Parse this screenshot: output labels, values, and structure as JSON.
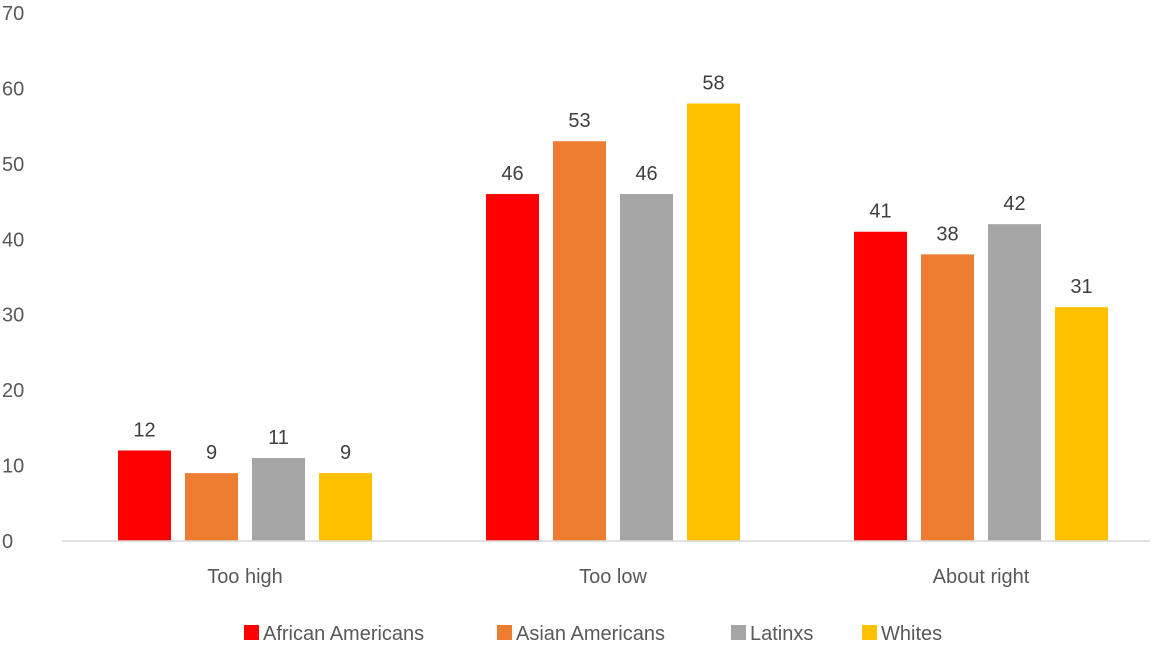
{
  "chart_data": {
    "type": "bar",
    "title": "",
    "xlabel": "",
    "ylabel": "",
    "categories": [
      "Too high",
      "Too low",
      "About right"
    ],
    "series": [
      {
        "name": "African Americans",
        "color": "#FF0000",
        "values": [
          12,
          46,
          41
        ]
      },
      {
        "name": "Asian Americans",
        "color": "#ED7D31",
        "values": [
          9,
          53,
          38
        ]
      },
      {
        "name": "Latinxs",
        "color": "#A5A5A5",
        "values": [
          11,
          46,
          42
        ]
      },
      {
        "name": "Whites",
        "color": "#FFC000",
        "values": [
          9,
          58,
          31
        ]
      }
    ],
    "ylim": [
      0,
      70
    ],
    "yticks": [
      0,
      10,
      20,
      30,
      40,
      50,
      60,
      70
    ],
    "grid": false,
    "data_labels": true,
    "legend_position": "bottom"
  }
}
